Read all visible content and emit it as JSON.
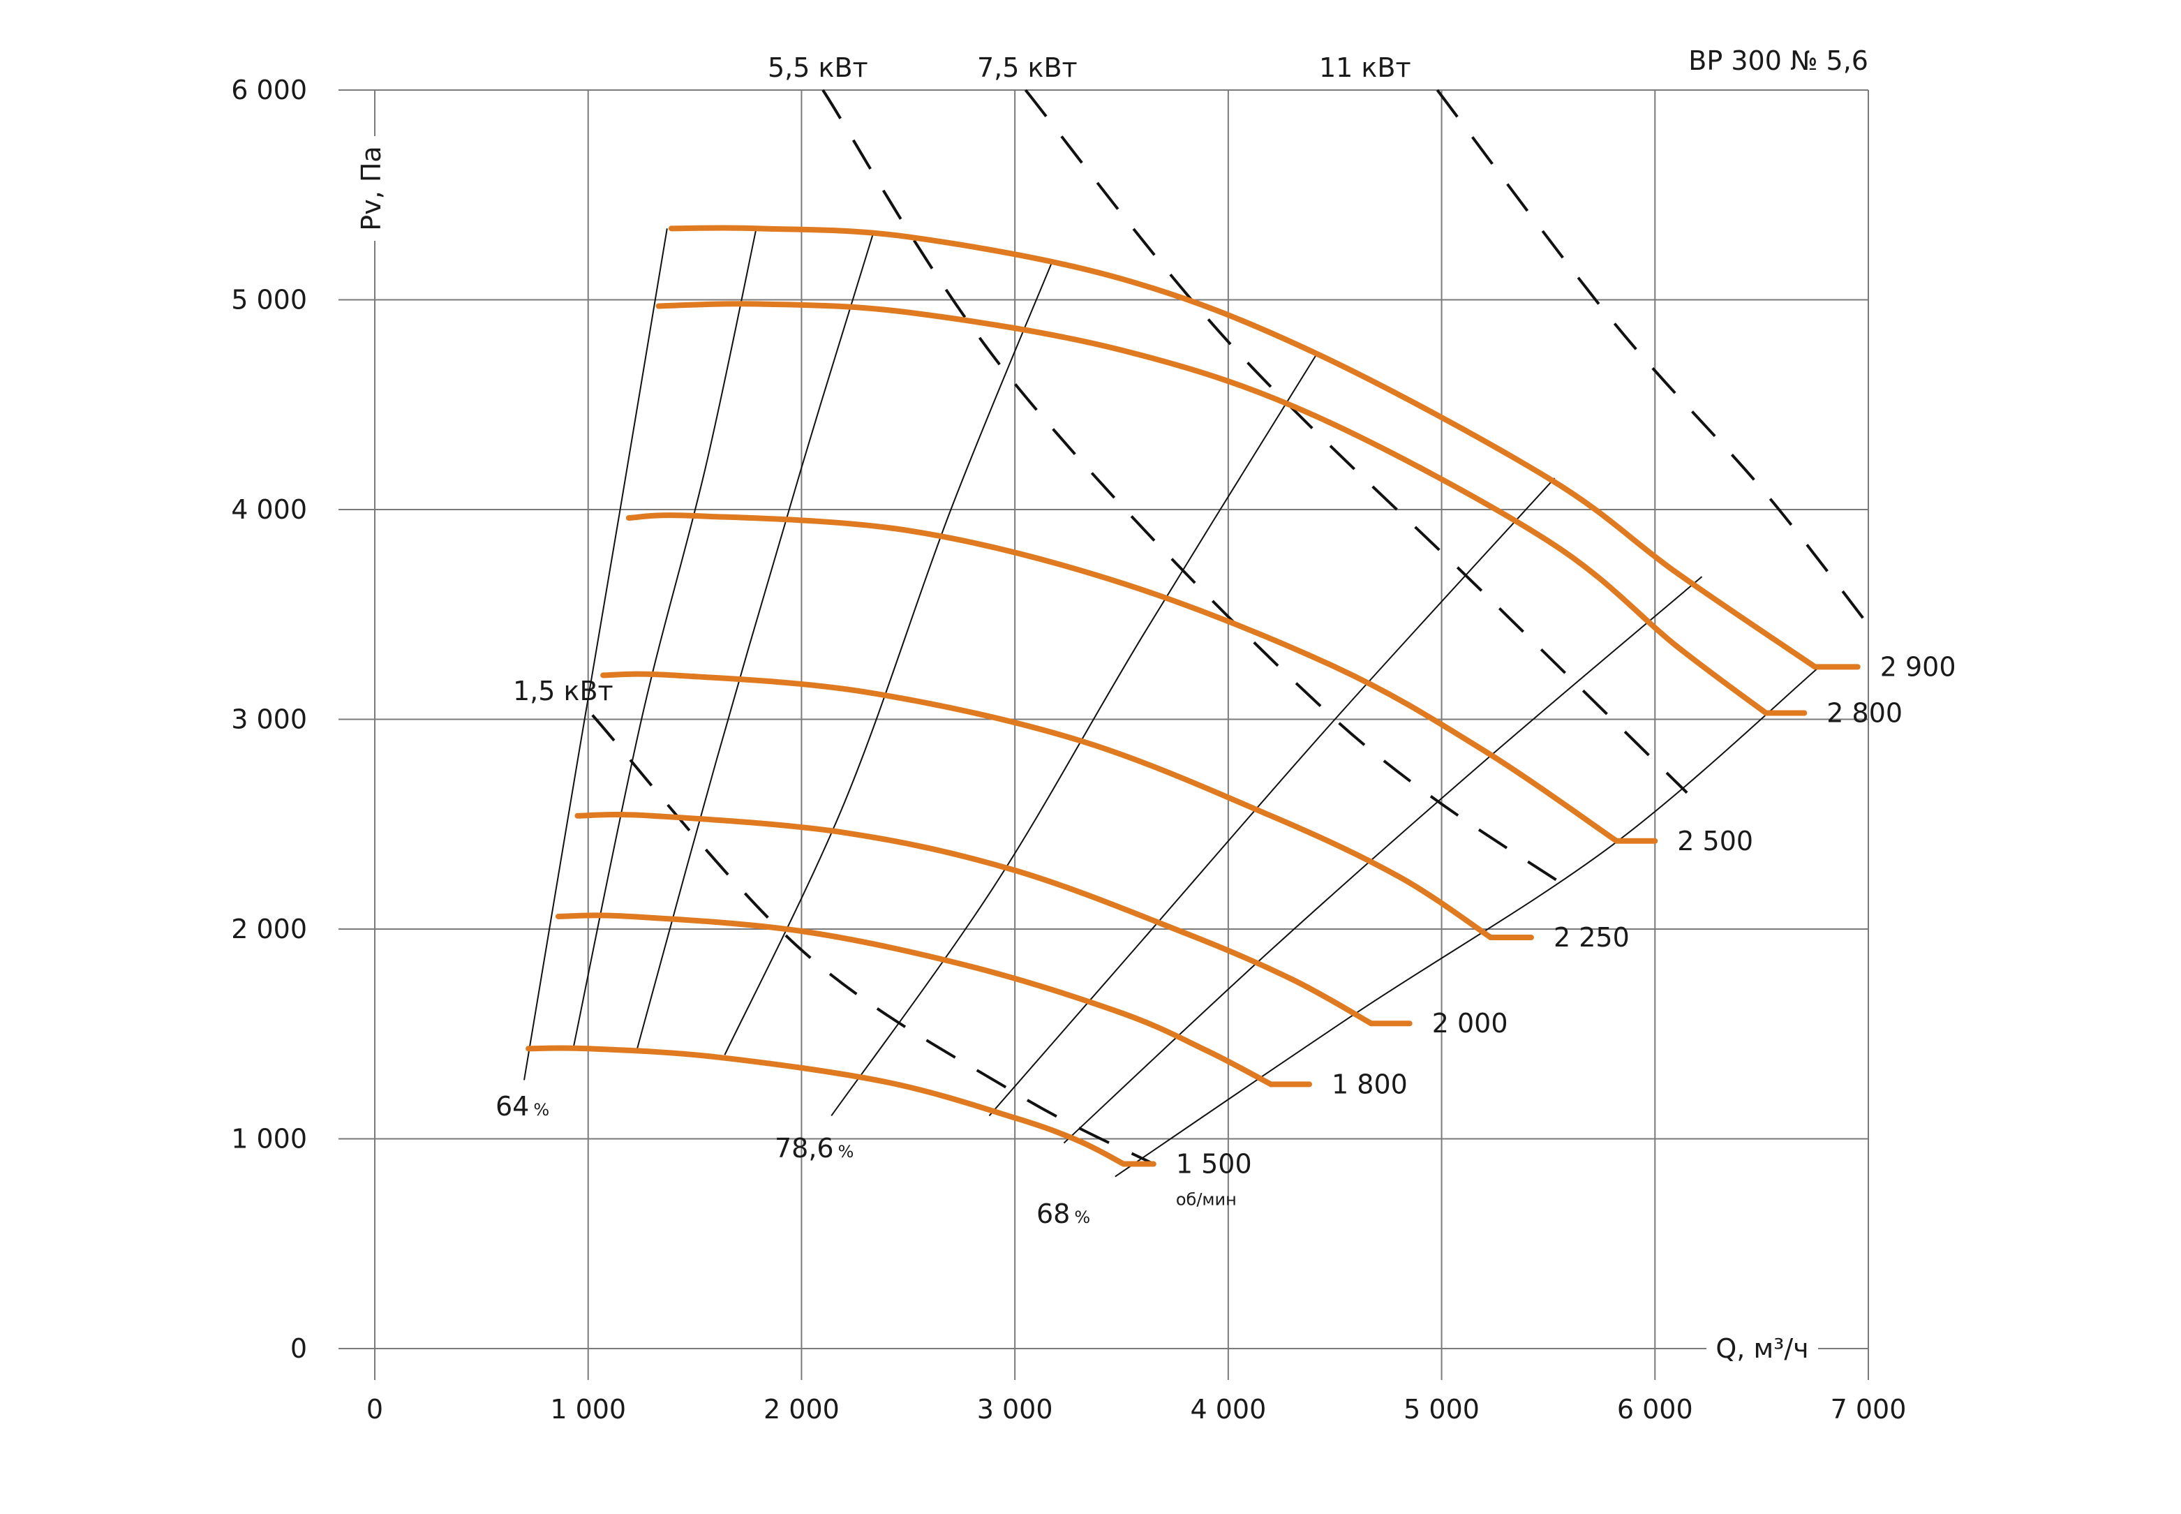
{
  "chart_data": {
    "type": "line",
    "title": "ВР 300 № 5,6",
    "xlabel": "Q, м³/ч",
    "ylabel": "Pv, Па",
    "xlim": [
      0,
      7000
    ],
    "ylim": [
      0,
      6000
    ],
    "grid": true,
    "x_ticks": [
      {
        "value": 0,
        "label": "0"
      },
      {
        "value": 1000,
        "label": "1 000"
      },
      {
        "value": 2000,
        "label": "2 000"
      },
      {
        "value": 3000,
        "label": "3 000"
      },
      {
        "value": 4000,
        "label": "4 000"
      },
      {
        "value": 5000,
        "label": "5 000"
      },
      {
        "value": 6000,
        "label": "6 000"
      },
      {
        "value": 7000,
        "label": "7 000"
      }
    ],
    "y_ticks": [
      {
        "value": 0,
        "label": "0"
      },
      {
        "value": 1000,
        "label": "1 000"
      },
      {
        "value": 2000,
        "label": "2 000"
      },
      {
        "value": 3000,
        "label": "3 000"
      },
      {
        "value": 4000,
        "label": "4 000"
      },
      {
        "value": 5000,
        "label": "5 000"
      },
      {
        "value": 6000,
        "label": "6 000"
      }
    ],
    "series": [
      {
        "name": "2 900",
        "x": [
          1390,
          1800,
          2500,
          3500,
          4400,
          5500,
          6100,
          6750
        ],
        "y": [
          5340,
          5340,
          5300,
          5100,
          4750,
          4150,
          3700,
          3250
        ],
        "tail_x": 6950
      },
      {
        "name": "2 800",
        "x": [
          1330,
          1800,
          2500,
          3500,
          4400,
          5500,
          6100,
          6520
        ],
        "y": [
          4970,
          4980,
          4940,
          4760,
          4450,
          3850,
          3350,
          3030
        ],
        "tail_x": 6700
      },
      {
        "name": "2 500",
        "x": [
          1190,
          1500,
          2500,
          3500,
          4500,
          5200,
          5820
        ],
        "y": [
          3960,
          3970,
          3900,
          3650,
          3250,
          2850,
          2420
        ],
        "tail_x": 6000
      },
      {
        "name": "2 250",
        "x": [
          1070,
          1400,
          2300,
          3300,
          4200,
          4800,
          5230
        ],
        "y": [
          3210,
          3210,
          3130,
          2900,
          2540,
          2250,
          1960
        ],
        "tail_x": 5420
      },
      {
        "name": "2 000",
        "x": [
          950,
          1300,
          2200,
          3000,
          3800,
          4300,
          4670
        ],
        "y": [
          2540,
          2540,
          2460,
          2280,
          1980,
          1760,
          1550
        ],
        "tail_x": 4850
      },
      {
        "name": "1 800",
        "x": [
          860,
          1200,
          2000,
          2800,
          3500,
          3900,
          4200
        ],
        "y": [
          2060,
          2060,
          1990,
          1820,
          1600,
          1420,
          1260
        ],
        "tail_x": 4380
      },
      {
        "name": "1 500",
        "x": [
          720,
          1000,
          1600,
          2400,
          3000,
          3300,
          3510
        ],
        "y": [
          1430,
          1430,
          1390,
          1270,
          1100,
          990,
          880
        ],
        "tail_x": 3650
      }
    ],
    "speed_unit": "об/мин",
    "efficiency_lines": [
      {
        "label": "64",
        "unit": "%",
        "x": [
          1370,
          1150,
          950,
          700
        ],
        "y": [
          5340,
          4000,
          2800,
          1280
        ]
      },
      {
        "label": "",
        "x": [
          1790,
          1550,
          1250,
          930
        ],
        "y": [
          5350,
          4200,
          3000,
          1430
        ]
      },
      {
        "label": "",
        "x": [
          2340,
          2000,
          1600,
          1230
        ],
        "y": [
          5330,
          4200,
          2800,
          1430
        ]
      },
      {
        "label": "",
        "x": [
          3170,
          2700,
          2200,
          1640
        ],
        "y": [
          5170,
          4000,
          2600,
          1400
        ]
      },
      {
        "label": "78,6",
        "unit": "%",
        "x": [
          4420,
          3600,
          2900,
          2140
        ],
        "y": [
          4750,
          3400,
          2200,
          1110
        ]
      },
      {
        "label": "",
        "x": [
          5530,
          4500,
          3600,
          2880
        ],
        "y": [
          4150,
          3000,
          1950,
          1110
        ]
      },
      {
        "label": "",
        "x": [
          6220,
          5200,
          4200,
          3230
        ],
        "y": [
          3680,
          2800,
          1900,
          980
        ]
      },
      {
        "label": "68",
        "unit": "%",
        "x": [
          6770,
          5800,
          4600,
          3470
        ],
        "y": [
          3250,
          2400,
          1600,
          820
        ]
      }
    ],
    "power_lines": [
      {
        "label": "1,5 кВт",
        "x": [
          1020,
          2000,
          3000,
          3650
        ],
        "y": [
          3020,
          1900,
          1220,
          880
        ]
      },
      {
        "label": "5,5 кВт",
        "x": [
          2100,
          3000,
          4500,
          5630
        ],
        "y": [
          6000,
          4600,
          3000,
          2170
        ]
      },
      {
        "label": "7,5 кВт",
        "x": [
          3050,
          4000,
          5200,
          6150
        ],
        "y": [
          6000,
          4800,
          3600,
          2650
        ]
      },
      {
        "label": "11 кВт",
        "x": [
          4980,
          5800,
          6500,
          7000
        ],
        "y": [
          6000,
          4900,
          4100,
          3450
        ]
      }
    ]
  }
}
